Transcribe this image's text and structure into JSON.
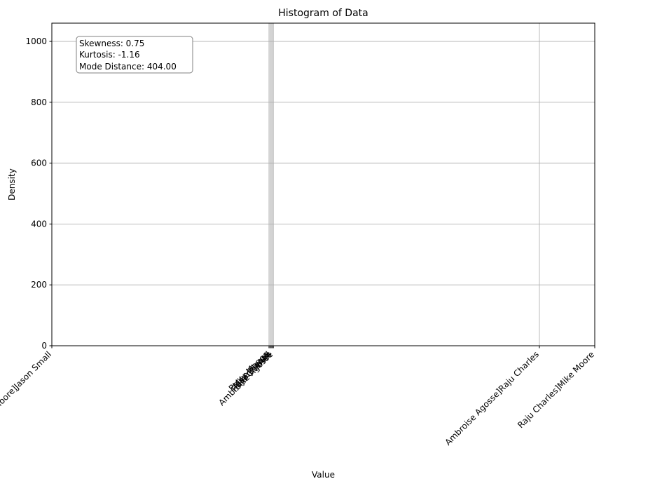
{
  "chart_data": {
    "type": "bar",
    "title": "Histogram of Data",
    "xlabel": "Value",
    "ylabel": "Density",
    "ylim": [
      0,
      1060
    ],
    "yticks": [
      0,
      200,
      400,
      600,
      800,
      1000
    ],
    "xlim": [
      0,
      1
    ],
    "xticks": [
      {
        "pos": 0.0,
        "label": "Mike Moore]Jason Small"
      },
      {
        "pos": 0.4,
        "label": "Peter Maggs"
      },
      {
        "pos": 0.402,
        "label": "Mike Moore"
      },
      {
        "pos": 0.404,
        "label": "Jason Small"
      },
      {
        "pos": 0.406,
        "label": "Raju Charles"
      },
      {
        "pos": 0.408,
        "label": "Ambroise Agosse"
      },
      {
        "pos": 0.898,
        "label": "Ambroise Agosse]Raju Charles"
      },
      {
        "pos": 1.0,
        "label": "Raju Charles]Mike Moore"
      }
    ],
    "grid": true,
    "categories": [],
    "values": []
  },
  "stats": {
    "skewness": "Skewness: 0.75",
    "kurtosis": "Kurtosis: -1.16",
    "mode_distance": "Mode Distance: 404.00"
  }
}
